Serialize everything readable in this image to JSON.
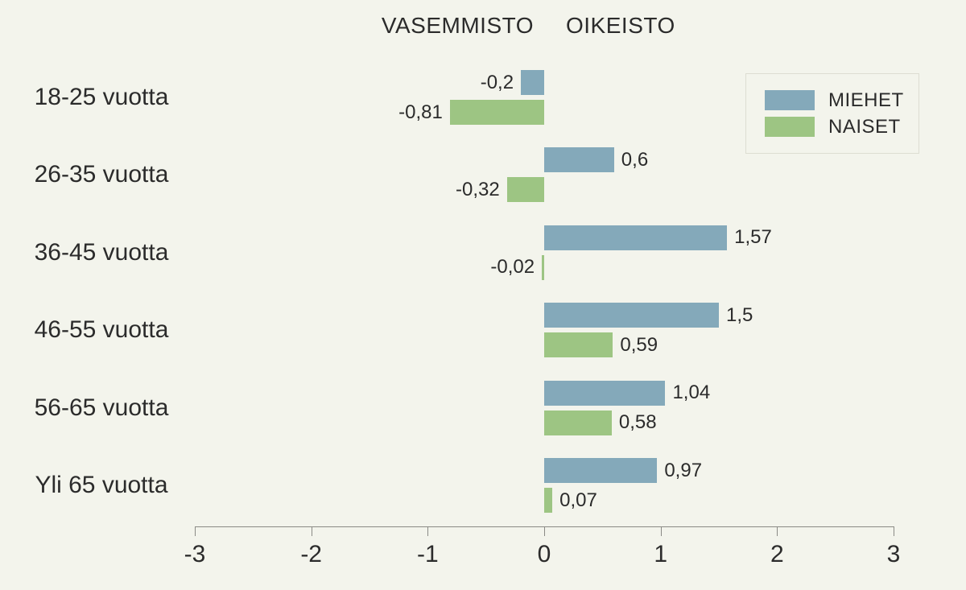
{
  "title": {
    "left": "VASEMMISTO",
    "right": "OIKEISTO"
  },
  "legend": {
    "items": [
      {
        "label": "MIEHET",
        "color": "#84a9ba"
      },
      {
        "label": "NAISET",
        "color": "#9dc583"
      }
    ]
  },
  "colors": {
    "background": "#f3f4ec",
    "text": "#2b2b2b",
    "axis": "#8a8a85",
    "legend_border": "#ddddd2"
  },
  "chart_data": {
    "type": "bar",
    "orientation": "horizontal",
    "title": "VASEMMISTO / OIKEISTO",
    "categories": [
      "18-25 vuotta",
      "26-35 vuotta",
      "36-45 vuotta",
      "46-55 vuotta",
      "56-65 vuotta",
      "Yli 65 vuotta"
    ],
    "series": [
      {
        "name": "MIEHET",
        "color": "#84a9ba",
        "values": [
          -0.2,
          0.6,
          1.57,
          1.5,
          1.04,
          0.97
        ],
        "labels": [
          "-0,2",
          "0,6",
          "1,57",
          "1,5",
          "1,04",
          "0,97"
        ]
      },
      {
        "name": "NAISET",
        "color": "#9dc583",
        "values": [
          -0.81,
          -0.32,
          -0.02,
          0.59,
          0.58,
          0.07
        ],
        "labels": [
          "-0,81",
          "-0,32",
          "-0,02",
          "0,59",
          "0,58",
          "0,07"
        ]
      }
    ],
    "xlim": [
      -3,
      3
    ],
    "x_ticks": [
      -3,
      -2,
      -1,
      0,
      1,
      2,
      3
    ],
    "x_tick_labels": [
      "-3",
      "-2",
      "-1",
      "0",
      "1",
      "2",
      "3"
    ],
    "grid": false,
    "legend_position": "top-right"
  }
}
